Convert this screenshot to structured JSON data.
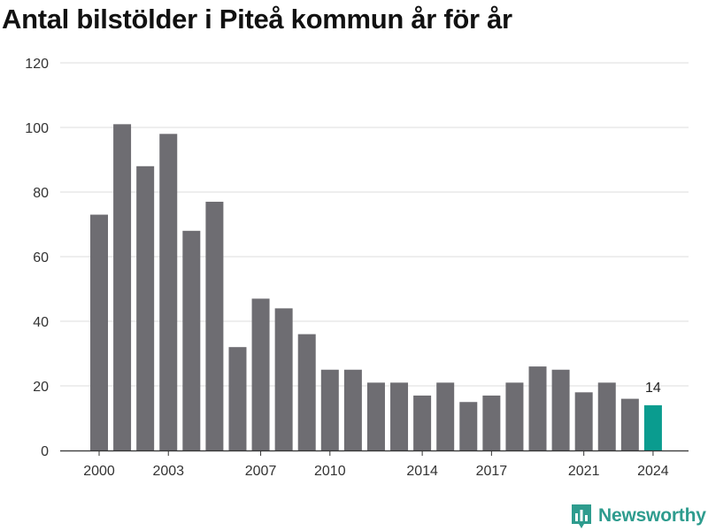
{
  "chart_data": {
    "type": "bar",
    "title": "Antal bilstölder i Piteå kommun år för år",
    "categories": [
      2000,
      2001,
      2002,
      2003,
      2004,
      2005,
      2006,
      2007,
      2008,
      2009,
      2010,
      2011,
      2012,
      2013,
      2014,
      2015,
      2016,
      2017,
      2018,
      2019,
      2020,
      2021,
      2022,
      2023,
      2024
    ],
    "values": [
      73,
      101,
      88,
      98,
      68,
      77,
      32,
      47,
      44,
      36,
      25,
      25,
      21,
      21,
      17,
      21,
      15,
      17,
      21,
      26,
      25,
      18,
      21,
      16,
      14
    ],
    "xticks": [
      2000,
      2003,
      2007,
      2010,
      2014,
      2017,
      2021,
      2024
    ],
    "yticks": [
      0,
      20,
      40,
      60,
      80,
      100,
      120
    ],
    "ylim": [
      0,
      120
    ],
    "highlight": {
      "category": 2024,
      "label": "14"
    },
    "colors": {
      "bar": "#6e6d72",
      "highlight": "#0a9c8f",
      "grid": "#dddddd"
    },
    "grid": true
  },
  "branding": {
    "name": "Newsworthy",
    "icon": "bar-chart-icon"
  }
}
